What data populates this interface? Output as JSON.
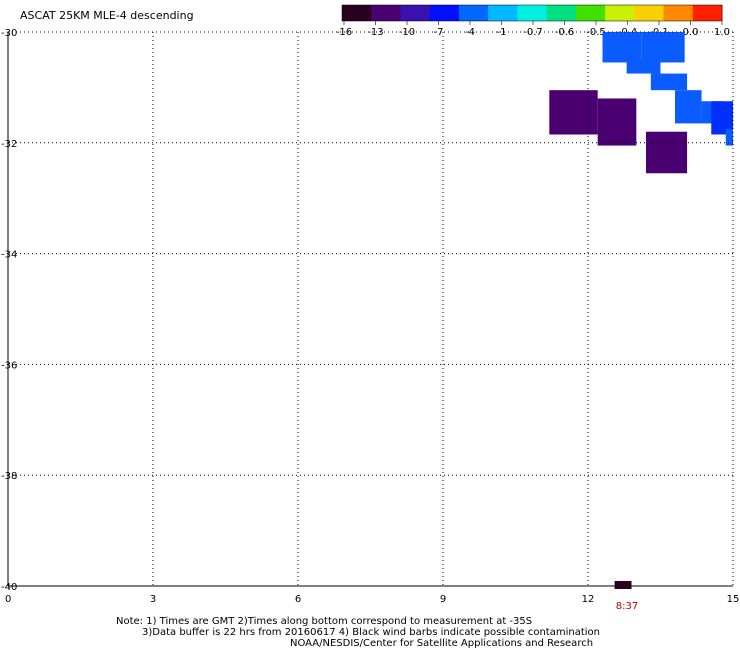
{
  "title": "ASCAT 25KM MLE-4 descending",
  "colorbar": {
    "labels": [
      "-16",
      "-13",
      "-10",
      "-7",
      "-4",
      "-1",
      "-0.7",
      "-0.6",
      "-0.5",
      "-0.4",
      "-0.1",
      "0.0",
      "1.0"
    ],
    "colors": [
      "#2a0020",
      "#4a0070",
      "#3a10b0",
      "#0010ff",
      "#0068ff",
      "#00b8ff",
      "#00f0e0",
      "#00e080",
      "#40e000",
      "#c8f000",
      "#f8d000",
      "#ff8800",
      "#ff2000"
    ]
  },
  "chart_data": {
    "type": "heatmap",
    "x_ticks": [
      "0",
      "3",
      "6",
      "9",
      "12",
      "15"
    ],
    "y_ticks": [
      "-30",
      "-32",
      "-34",
      "-36",
      "-38",
      "-40"
    ],
    "xlim": [
      0,
      15
    ],
    "ylim": [
      -40,
      -30
    ],
    "grid": true,
    "cells": [
      {
        "x0": 12.3,
        "x1": 13.1,
        "y0": -30.55,
        "y1": -30.0,
        "color": "#0a5cff"
      },
      {
        "x0": 13.1,
        "x1": 13.5,
        "y0": -30.55,
        "y1": -30.0,
        "color": "#0a5cff"
      },
      {
        "x0": 13.5,
        "x1": 14.0,
        "y0": -30.55,
        "y1": -30.0,
        "color": "#0a5cff"
      },
      {
        "x0": 12.8,
        "x1": 13.5,
        "y0": -30.75,
        "y1": -30.5,
        "color": "#0a5cff"
      },
      {
        "x0": 13.3,
        "x1": 14.05,
        "y0": -31.05,
        "y1": -30.75,
        "color": "#0a5cff"
      },
      {
        "x0": 13.8,
        "x1": 14.35,
        "y0": -31.65,
        "y1": -31.05,
        "color": "#0a5cff"
      },
      {
        "x0": 14.35,
        "x1": 14.8,
        "y0": -31.65,
        "y1": -31.25,
        "color": "#0a5cff"
      },
      {
        "x0": 14.55,
        "x1": 15.0,
        "y0": -31.85,
        "y1": -31.25,
        "color": "#0030ff"
      },
      {
        "x0": 14.85,
        "x1": 15.0,
        "y0": -32.05,
        "y1": -31.75,
        "color": "#0a5cff"
      },
      {
        "x0": 11.2,
        "x1": 12.2,
        "y0": -31.85,
        "y1": -31.05,
        "color": "#4a0070"
      },
      {
        "x0": 12.2,
        "x1": 13.0,
        "y0": -32.05,
        "y1": -31.2,
        "color": "#4a0070"
      },
      {
        "x0": 13.2,
        "x1": 14.05,
        "y0": -32.55,
        "y1": -31.8,
        "color": "#4a0070"
      }
    ],
    "time_markers": [
      {
        "x0": 12.55,
        "x1": 12.9,
        "label": "8:37",
        "color": "#2a0020"
      }
    ]
  },
  "notes": [
    "Note: 1) Times are GMT 2)Times along bottom correspond to measurement at -35S",
    "3)Data buffer is 22 hrs from 20160617 4) Black wind barbs indicate possible contamination",
    "NOAA/NESDIS/Center for Satellite Applications and Research"
  ]
}
